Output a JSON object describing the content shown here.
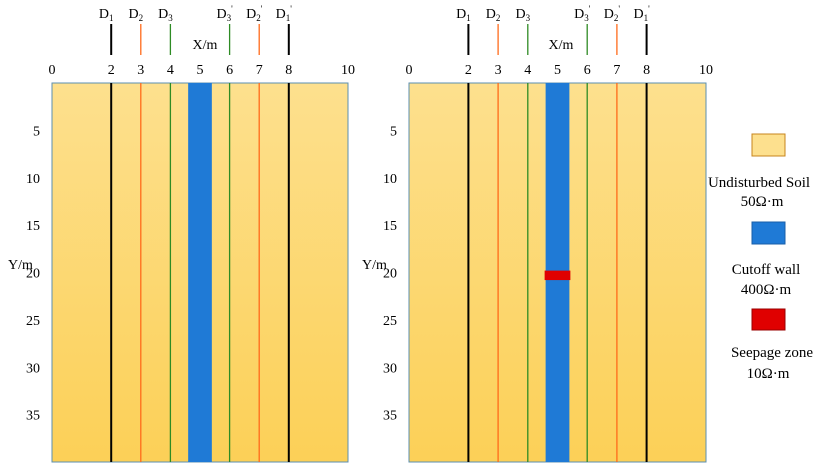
{
  "colors": {
    "soil_top": "#fde08e",
    "soil_bottom": "#fcd057",
    "soil_border": "#5b8fb0",
    "wall": "#1f7ad6",
    "seepage": "#e00000",
    "electrode_d1": "#000000",
    "electrode_d2": "#ff6a1a",
    "electrode_d3": "#2e8b24"
  },
  "axes": {
    "x_label": "X/m",
    "y_label": "Y/m",
    "x_ticks": [
      "0",
      "2",
      "3",
      "4",
      "5",
      "6",
      "7",
      "8",
      "10"
    ],
    "y_ticks": [
      "5",
      "10",
      "15",
      "20",
      "25",
      "30",
      "35"
    ]
  },
  "electrodes": [
    {
      "base": "D",
      "sub": "1",
      "sup": "",
      "x": 2,
      "color_key": "electrode_d1"
    },
    {
      "base": "D",
      "sub": "2",
      "sup": "",
      "x": 3,
      "color_key": "electrode_d2"
    },
    {
      "base": "D",
      "sub": "3",
      "sup": "",
      "x": 4,
      "color_key": "electrode_d3"
    },
    {
      "base": "D",
      "sub": "3",
      "sup": "'",
      "x": 6,
      "color_key": "electrode_d3"
    },
    {
      "base": "D",
      "sub": "2",
      "sup": "'",
      "x": 7,
      "color_key": "electrode_d2"
    },
    {
      "base": "D",
      "sub": "1",
      "sup": "'",
      "x": 8,
      "color_key": "electrode_d1"
    }
  ],
  "domain": {
    "x_range": [
      0,
      10
    ],
    "y_range": [
      0,
      40
    ]
  },
  "cutoff_wall": {
    "x_range": [
      4.6,
      5.4
    ]
  },
  "seepage_zone": {
    "x_range": [
      4.6,
      5.4
    ],
    "y_range": [
      19.8,
      20.8
    ]
  },
  "legend": [
    {
      "name": "Undisturbed Soil",
      "value": "50Ω·m",
      "swatch": "soil_top"
    },
    {
      "name": "Cutoff wall",
      "value": "400Ω·m",
      "swatch": "wall"
    },
    {
      "name": "Seepage zone",
      "value": "10Ω·m",
      "swatch": "seepage"
    }
  ]
}
